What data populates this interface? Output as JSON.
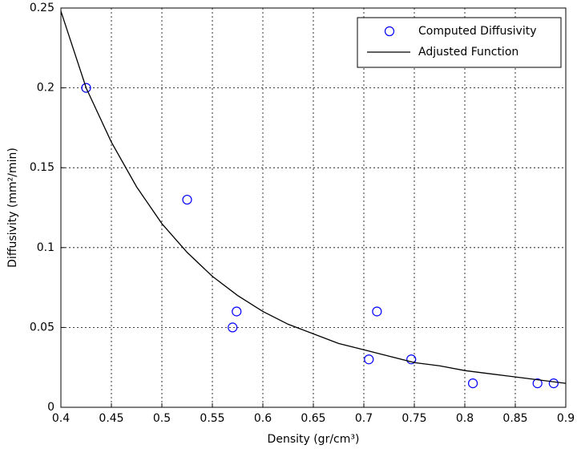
{
  "chart_data": {
    "type": "scatter",
    "xlabel": "Density (gr/cm³)",
    "ylabel": "Diffusivity (mm²/min)",
    "xlim": [
      0.4,
      0.9
    ],
    "xticks": [
      0.4,
      0.45,
      0.5,
      0.55,
      0.6,
      0.65,
      0.7,
      0.75,
      0.8,
      0.85,
      0.9
    ],
    "ylim": [
      0,
      0.25
    ],
    "yticks": [
      0,
      0.05,
      0.1,
      0.15,
      0.2,
      0.25
    ],
    "grid": true,
    "legend": "upper right",
    "series": [
      {
        "name": "Computed Diffusivity",
        "color": "#0000ff",
        "type": "scatter",
        "x": [
          0.425,
          0.525,
          0.57,
          0.574,
          0.705,
          0.713,
          0.747,
          0.808,
          0.872,
          0.888
        ],
        "values": [
          0.2,
          0.13,
          0.05,
          0.06,
          0.03,
          0.06,
          0.03,
          0.015,
          0.015,
          0.015
        ]
      },
      {
        "name": "Adjusted Function",
        "color": "#000000",
        "type": "line",
        "x": [
          0.4,
          0.425,
          0.45,
          0.475,
          0.5,
          0.525,
          0.55,
          0.575,
          0.6,
          0.625,
          0.65,
          0.675,
          0.7,
          0.725,
          0.75,
          0.775,
          0.8,
          0.825,
          0.85,
          0.875,
          0.9
        ],
        "values": [
          0.248,
          0.2,
          0.166,
          0.138,
          0.115,
          0.097,
          0.082,
          0.07,
          0.06,
          0.052,
          0.046,
          0.04,
          0.036,
          0.032,
          0.028,
          0.026,
          0.023,
          0.021,
          0.019,
          0.017,
          0.015
        ]
      }
    ]
  }
}
